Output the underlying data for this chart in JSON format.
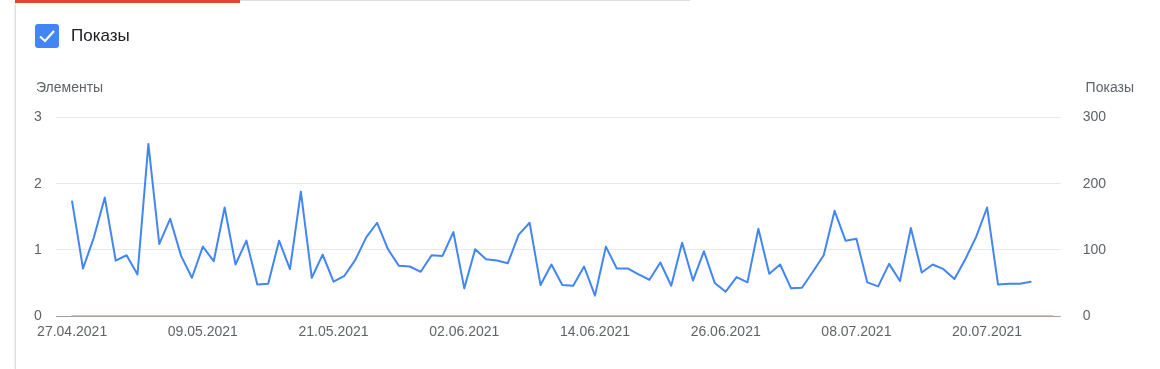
{
  "chart_data": {
    "type": "line",
    "xlabel": null,
    "ylabel": "Элементы",
    "y2label": "Показы",
    "x": [
      "2021-04-27",
      "2021-04-28",
      "2021-04-29",
      "2021-04-30",
      "2021-05-01",
      "2021-05-02",
      "2021-05-03",
      "2021-05-04",
      "2021-05-05",
      "2021-05-06",
      "2021-05-07",
      "2021-05-08",
      "2021-05-09",
      "2021-05-10",
      "2021-05-11",
      "2021-05-12",
      "2021-05-13",
      "2021-05-14",
      "2021-05-15",
      "2021-05-16",
      "2021-05-17",
      "2021-05-18",
      "2021-05-19",
      "2021-05-20",
      "2021-05-21",
      "2021-05-22",
      "2021-05-23",
      "2021-05-24",
      "2021-05-25",
      "2021-05-26",
      "2021-05-27",
      "2021-05-28",
      "2021-05-29",
      "2021-05-30",
      "2021-05-31",
      "2021-06-01",
      "2021-06-02",
      "2021-06-03",
      "2021-06-04",
      "2021-06-05",
      "2021-06-06",
      "2021-06-07",
      "2021-06-08",
      "2021-06-09",
      "2021-06-10",
      "2021-06-11",
      "2021-06-12",
      "2021-06-13",
      "2021-06-14",
      "2021-06-15",
      "2021-06-16",
      "2021-06-17",
      "2021-06-18",
      "2021-06-19",
      "2021-06-20",
      "2021-06-21",
      "2021-06-22",
      "2021-06-23",
      "2021-06-24",
      "2021-06-25",
      "2021-06-26",
      "2021-06-27",
      "2021-06-28",
      "2021-06-29",
      "2021-06-30",
      "2021-07-01",
      "2021-07-02",
      "2021-07-03",
      "2021-07-04",
      "2021-07-05",
      "2021-07-06",
      "2021-07-07",
      "2021-07-08",
      "2021-07-09",
      "2021-07-10",
      "2021-07-11",
      "2021-07-12",
      "2021-07-13",
      "2021-07-14",
      "2021-07-15",
      "2021-07-16",
      "2021-07-17",
      "2021-07-18",
      "2021-07-19",
      "2021-07-20",
      "2021-07-21",
      "2021-07-22",
      "2021-07-23",
      "2021-07-24"
    ],
    "series": [
      {
        "name": "Показы",
        "color": "#4285f4",
        "axis": "y2",
        "values": [
          173,
          72,
          119,
          179,
          84,
          92,
          63,
          260,
          109,
          147,
          91,
          58,
          105,
          83,
          164,
          78,
          114,
          48,
          49,
          114,
          71,
          188,
          58,
          93,
          52,
          61,
          85,
          119,
          141,
          101,
          76,
          75,
          67,
          92,
          91,
          127,
          42,
          101,
          86,
          84,
          80,
          123,
          141,
          47,
          78,
          47,
          46,
          75,
          31,
          105,
          72,
          72,
          63,
          55,
          81,
          46,
          111,
          54,
          98,
          50,
          37,
          59,
          51,
          132,
          64,
          78,
          42,
          43,
          67,
          92,
          159,
          114,
          117,
          51,
          45,
          79,
          53,
          133,
          66,
          78,
          71,
          56,
          86,
          120,
          164,
          48,
          49,
          49,
          52
        ]
      },
      {
        "color": "#ee9a9a",
        "axis": "y",
        "x": [
          "2021-04-27",
          "2021-07-26"
        ],
        "values": [
          0,
          0
        ]
      }
    ],
    "xlim": [
      "2021-04-25T12:00",
      "2021-07-26T18:00"
    ],
    "xticks": [
      {
        "value": "2021-04-27",
        "label": "27.04.2021"
      },
      {
        "value": "2021-05-09",
        "label": "09.05.2021"
      },
      {
        "value": "2021-05-21",
        "label": "21.05.2021"
      },
      {
        "value": "2021-06-02",
        "label": "02.06.2021"
      },
      {
        "value": "2021-06-14",
        "label": "14.06.2021"
      },
      {
        "value": "2021-06-26",
        "label": "26.06.2021"
      },
      {
        "value": "2021-07-08",
        "label": "08.07.2021"
      },
      {
        "value": "2021-07-20",
        "label": "20.07.2021"
      }
    ],
    "ylim": [
      0,
      3
    ],
    "yticks": [
      0,
      1,
      2,
      3
    ],
    "y2lim": [
      0,
      300
    ],
    "y2ticks": [
      0,
      100,
      200,
      300
    ],
    "grid": "y",
    "legend": "top left",
    "marker": "none",
    "line_style": "solid"
  }
}
